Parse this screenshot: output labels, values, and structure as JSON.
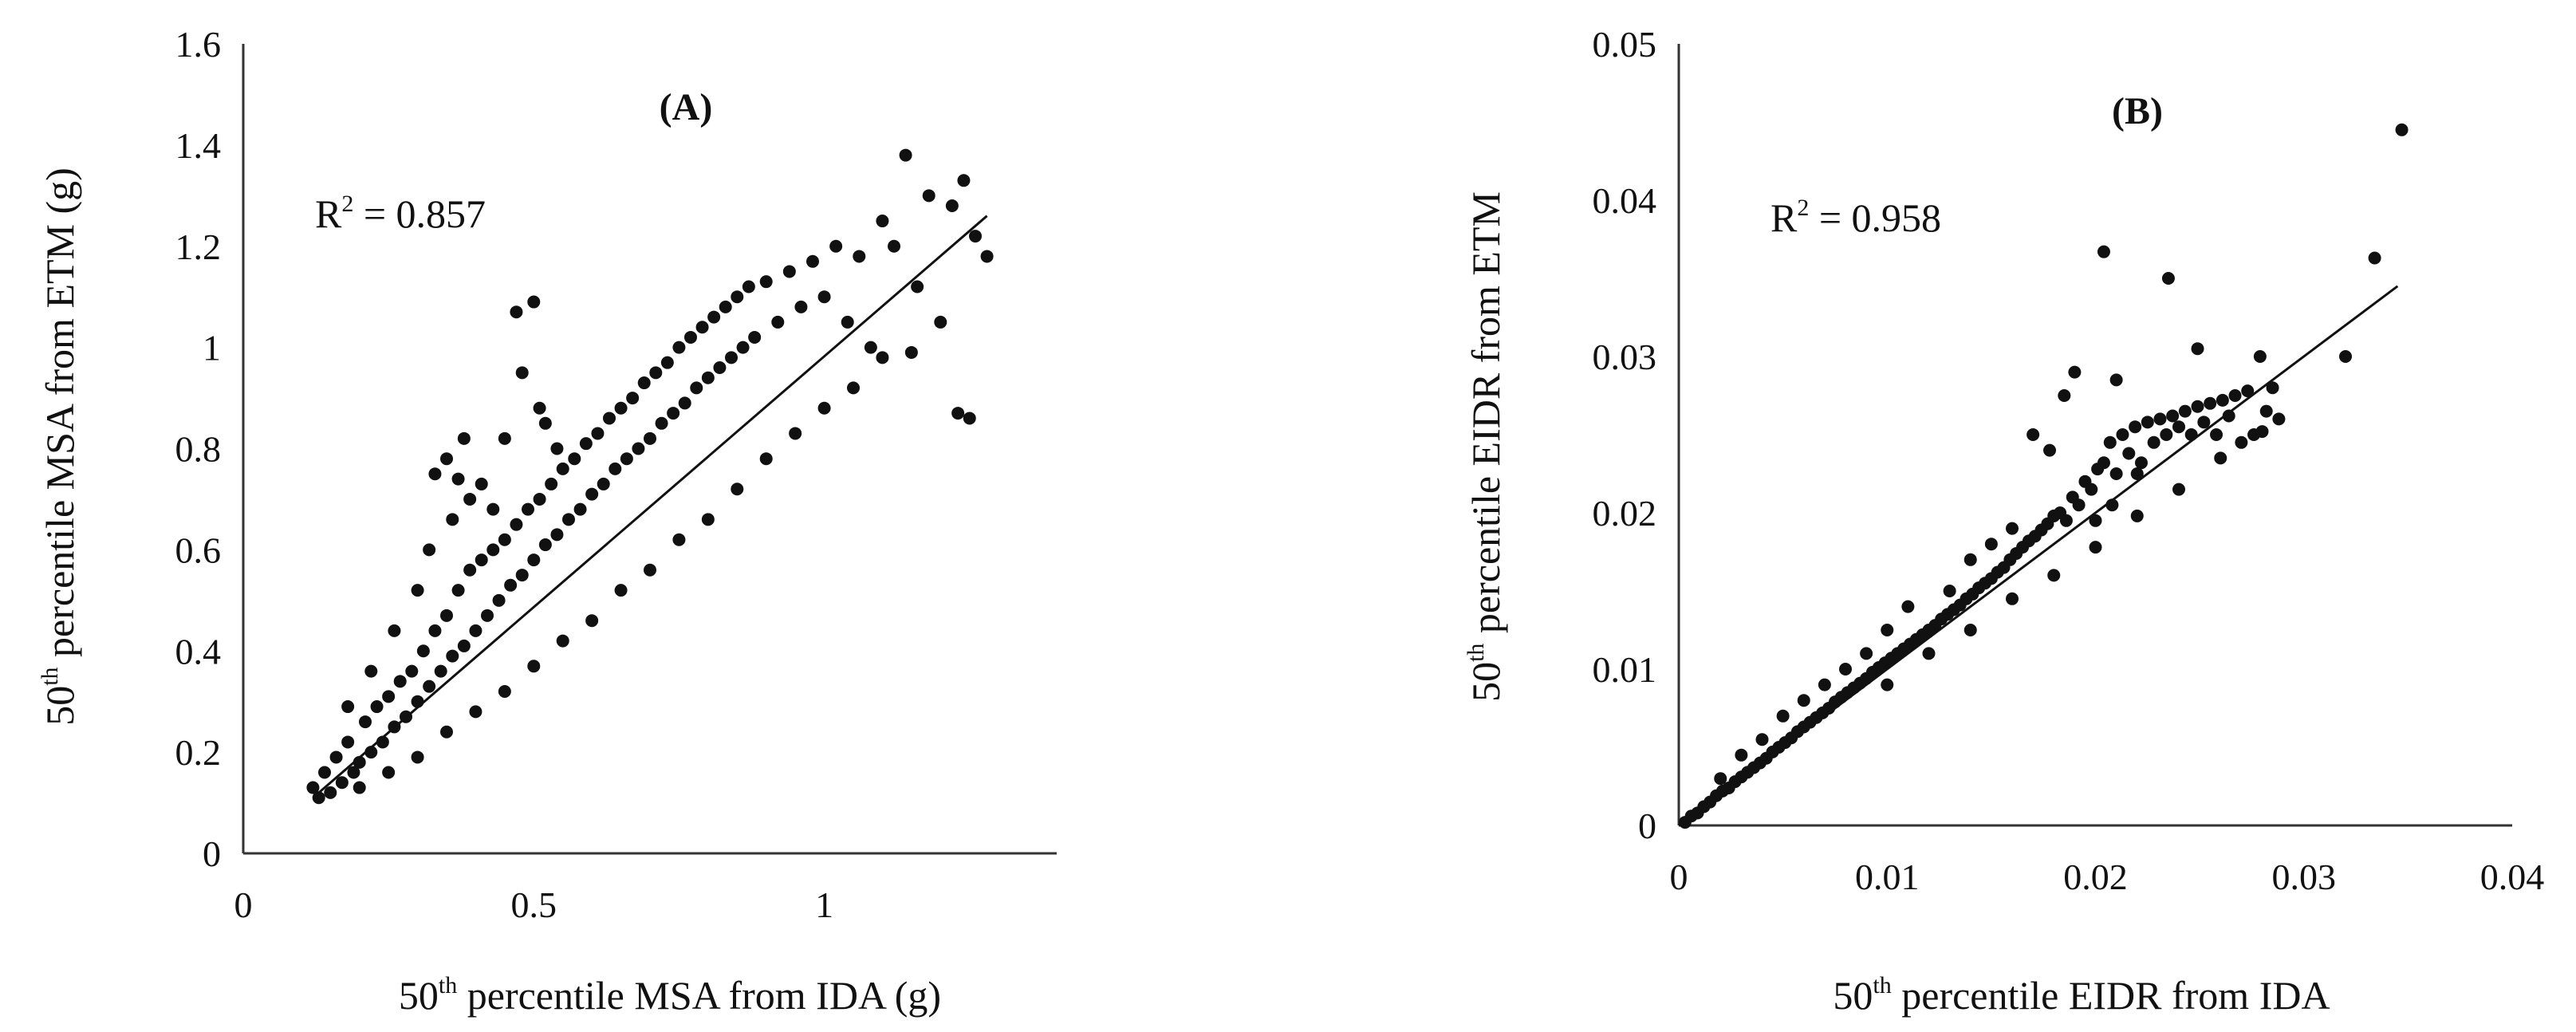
{
  "chart_data": [
    {
      "type": "scatter",
      "panel_label": "(A)",
      "annotation": {
        "prefix": "R",
        "exp": "2",
        "text": " = 0.857"
      },
      "xlabel": {
        "pre": "50",
        "sup": "th",
        "post": " percentile MSA from IDA  (g)"
      },
      "ylabel": {
        "pre": "50",
        "sup": "th",
        "post": " percentile MSA from ETM  (g)"
      },
      "xlim": [
        0,
        1.4
      ],
      "ylim": [
        0,
        1.6
      ],
      "xticks": [
        0,
        0.5,
        1
      ],
      "xtick_labels": [
        "0",
        "0.5",
        "1"
      ],
      "yticks": [
        0,
        0.2,
        0.4,
        0.6,
        0.8,
        1.0,
        1.2,
        1.4,
        1.6
      ],
      "ytick_labels": [
        "0",
        "0.2",
        "0.4",
        "0.6",
        "0.8",
        "1",
        "1.2",
        "1.4",
        "1.6"
      ],
      "trendline": {
        "x": [
          0.12,
          1.28
        ],
        "y": [
          0.11,
          1.26
        ]
      },
      "points": [
        [
          0.12,
          0.13
        ],
        [
          0.13,
          0.11
        ],
        [
          0.14,
          0.16
        ],
        [
          0.15,
          0.12
        ],
        [
          0.16,
          0.19
        ],
        [
          0.17,
          0.14
        ],
        [
          0.18,
          0.22
        ],
        [
          0.19,
          0.16
        ],
        [
          0.2,
          0.18
        ],
        [
          0.21,
          0.26
        ],
        [
          0.22,
          0.2
        ],
        [
          0.23,
          0.29
        ],
        [
          0.24,
          0.22
        ],
        [
          0.25,
          0.31
        ],
        [
          0.26,
          0.25
        ],
        [
          0.27,
          0.34
        ],
        [
          0.28,
          0.27
        ],
        [
          0.29,
          0.36
        ],
        [
          0.3,
          0.3
        ],
        [
          0.31,
          0.4
        ],
        [
          0.32,
          0.33
        ],
        [
          0.33,
          0.44
        ],
        [
          0.34,
          0.36
        ],
        [
          0.35,
          0.47
        ],
        [
          0.36,
          0.39
        ],
        [
          0.37,
          0.52
        ],
        [
          0.38,
          0.41
        ],
        [
          0.39,
          0.56
        ],
        [
          0.4,
          0.44
        ],
        [
          0.41,
          0.58
        ],
        [
          0.42,
          0.47
        ],
        [
          0.43,
          0.6
        ],
        [
          0.44,
          0.5
        ],
        [
          0.45,
          0.62
        ],
        [
          0.46,
          0.53
        ],
        [
          0.47,
          0.65
        ],
        [
          0.48,
          0.55
        ],
        [
          0.49,
          0.68
        ],
        [
          0.5,
          0.58
        ],
        [
          0.51,
          0.7
        ],
        [
          0.52,
          0.61
        ],
        [
          0.53,
          0.73
        ],
        [
          0.54,
          0.63
        ],
        [
          0.55,
          0.76
        ],
        [
          0.56,
          0.66
        ],
        [
          0.57,
          0.78
        ],
        [
          0.58,
          0.68
        ],
        [
          0.59,
          0.81
        ],
        [
          0.6,
          0.71
        ],
        [
          0.61,
          0.83
        ],
        [
          0.62,
          0.73
        ],
        [
          0.63,
          0.86
        ],
        [
          0.64,
          0.76
        ],
        [
          0.65,
          0.88
        ],
        [
          0.66,
          0.78
        ],
        [
          0.67,
          0.9
        ],
        [
          0.68,
          0.8
        ],
        [
          0.69,
          0.93
        ],
        [
          0.7,
          0.82
        ],
        [
          0.71,
          0.95
        ],
        [
          0.72,
          0.85
        ],
        [
          0.73,
          0.97
        ],
        [
          0.74,
          0.87
        ],
        [
          0.75,
          1.0
        ],
        [
          0.76,
          0.89
        ],
        [
          0.77,
          1.02
        ],
        [
          0.78,
          0.92
        ],
        [
          0.79,
          1.04
        ],
        [
          0.8,
          0.94
        ],
        [
          0.81,
          1.06
        ],
        [
          0.82,
          0.96
        ],
        [
          0.83,
          1.08
        ],
        [
          0.84,
          0.98
        ],
        [
          0.85,
          1.1
        ],
        [
          0.86,
          1.0
        ],
        [
          0.87,
          1.12
        ],
        [
          0.88,
          1.02
        ],
        [
          0.9,
          1.13
        ],
        [
          0.92,
          1.05
        ],
        [
          0.94,
          1.15
        ],
        [
          0.96,
          1.08
        ],
        [
          0.98,
          1.17
        ],
        [
          1.0,
          1.1
        ],
        [
          1.02,
          1.2
        ],
        [
          1.04,
          1.05
        ],
        [
          1.06,
          1.18
        ],
        [
          1.08,
          1.0
        ],
        [
          1.1,
          1.25
        ],
        [
          1.12,
          1.2
        ],
        [
          1.14,
          1.38
        ],
        [
          1.16,
          1.12
        ],
        [
          1.18,
          1.3
        ],
        [
          1.2,
          1.05
        ],
        [
          1.22,
          1.28
        ],
        [
          1.24,
          1.33
        ],
        [
          1.25,
          0.86
        ],
        [
          1.26,
          1.22
        ],
        [
          1.28,
          1.18
        ],
        [
          1.23,
          0.87
        ],
        [
          1.15,
          0.99
        ],
        [
          0.18,
          0.29
        ],
        [
          0.22,
          0.36
        ],
        [
          0.26,
          0.44
        ],
        [
          0.3,
          0.52
        ],
        [
          0.32,
          0.6
        ],
        [
          0.33,
          0.75
        ],
        [
          0.35,
          0.78
        ],
        [
          0.36,
          0.66
        ],
        [
          0.37,
          0.74
        ],
        [
          0.38,
          0.82
        ],
        [
          0.39,
          0.7
        ],
        [
          0.41,
          0.73
        ],
        [
          0.43,
          0.68
        ],
        [
          0.45,
          0.82
        ],
        [
          0.47,
          1.07
        ],
        [
          0.48,
          0.95
        ],
        [
          0.5,
          1.09
        ],
        [
          0.51,
          0.88
        ],
        [
          0.52,
          0.85
        ],
        [
          0.54,
          0.8
        ],
        [
          0.2,
          0.13
        ],
        [
          0.25,
          0.16
        ],
        [
          0.3,
          0.19
        ],
        [
          0.35,
          0.24
        ],
        [
          0.4,
          0.28
        ],
        [
          0.45,
          0.32
        ],
        [
          0.5,
          0.37
        ],
        [
          0.55,
          0.42
        ],
        [
          0.6,
          0.46
        ],
        [
          0.65,
          0.52
        ],
        [
          0.7,
          0.56
        ],
        [
          0.75,
          0.62
        ],
        [
          0.8,
          0.66
        ],
        [
          0.85,
          0.72
        ],
        [
          0.9,
          0.78
        ],
        [
          0.95,
          0.83
        ],
        [
          1.0,
          0.88
        ],
        [
          1.05,
          0.92
        ],
        [
          1.1,
          0.98
        ]
      ]
    },
    {
      "type": "scatter",
      "panel_label": "(B)",
      "annotation": {
        "prefix": "R",
        "exp": "2",
        "text": " = 0.958"
      },
      "xlabel": {
        "pre": "50",
        "sup": "th",
        "post": " percentile EIDR from IDA"
      },
      "ylabel": {
        "pre": "50",
        "sup": "th",
        "post": " percentile EIDR from ETM"
      },
      "xlim": [
        0,
        0.04
      ],
      "ylim": [
        0,
        0.05
      ],
      "xticks": [
        0,
        0.01,
        0.02,
        0.03,
        0.04
      ],
      "xtick_labels": [
        "0",
        "0.01",
        "0.02",
        "0.03",
        "0.04"
      ],
      "yticks": [
        0,
        0.01,
        0.02,
        0.03,
        0.04,
        0.05
      ],
      "ytick_labels": [
        "0",
        "0.01",
        "0.02",
        "0.03",
        "0.04",
        "0.05"
      ],
      "trendline": {
        "x": [
          0,
          0.0345
        ],
        "y": [
          0,
          0.0345
        ]
      },
      "points": [
        [
          0.0003,
          0.0002
        ],
        [
          0.0006,
          0.0006
        ],
        [
          0.0009,
          0.0008
        ],
        [
          0.0012,
          0.0012
        ],
        [
          0.0015,
          0.0015
        ],
        [
          0.0018,
          0.0019
        ],
        [
          0.0021,
          0.0022
        ],
        [
          0.0024,
          0.0024
        ],
        [
          0.0027,
          0.0028
        ],
        [
          0.003,
          0.0031
        ],
        [
          0.0033,
          0.0034
        ],
        [
          0.0036,
          0.0037
        ],
        [
          0.0039,
          0.004
        ],
        [
          0.0042,
          0.0043
        ],
        [
          0.0045,
          0.0047
        ],
        [
          0.0048,
          0.005
        ],
        [
          0.0051,
          0.0053
        ],
        [
          0.0054,
          0.0056
        ],
        [
          0.0057,
          0.006
        ],
        [
          0.006,
          0.0063
        ],
        [
          0.0063,
          0.0066
        ],
        [
          0.0066,
          0.0069
        ],
        [
          0.0069,
          0.0072
        ],
        [
          0.0072,
          0.0075
        ],
        [
          0.0075,
          0.0079
        ],
        [
          0.0078,
          0.0082
        ],
        [
          0.0081,
          0.0085
        ],
        [
          0.0084,
          0.0088
        ],
        [
          0.0087,
          0.0091
        ],
        [
          0.009,
          0.0094
        ],
        [
          0.0093,
          0.0098
        ],
        [
          0.0096,
          0.0101
        ],
        [
          0.0099,
          0.0104
        ],
        [
          0.0102,
          0.0107
        ],
        [
          0.0105,
          0.011
        ],
        [
          0.0108,
          0.0113
        ],
        [
          0.0111,
          0.0116
        ],
        [
          0.0114,
          0.0119
        ],
        [
          0.0117,
          0.0122
        ],
        [
          0.012,
          0.0125
        ],
        [
          0.0123,
          0.0128
        ],
        [
          0.0126,
          0.0132
        ],
        [
          0.0129,
          0.0135
        ],
        [
          0.0132,
          0.0138
        ],
        [
          0.0135,
          0.0141
        ],
        [
          0.0138,
          0.0145
        ],
        [
          0.0141,
          0.0148
        ],
        [
          0.0144,
          0.0152
        ],
        [
          0.0147,
          0.0155
        ],
        [
          0.015,
          0.0158
        ],
        [
          0.0153,
          0.0162
        ],
        [
          0.0156,
          0.0165
        ],
        [
          0.0159,
          0.017
        ],
        [
          0.0162,
          0.0174
        ],
        [
          0.0165,
          0.0178
        ],
        [
          0.0168,
          0.0182
        ],
        [
          0.0171,
          0.0185
        ],
        [
          0.0174,
          0.0189
        ],
        [
          0.0177,
          0.0193
        ],
        [
          0.018,
          0.0198
        ],
        [
          0.0183,
          0.02
        ],
        [
          0.0186,
          0.0195
        ],
        [
          0.0189,
          0.021
        ],
        [
          0.0192,
          0.0205
        ],
        [
          0.0195,
          0.022
        ],
        [
          0.0198,
          0.0215
        ],
        [
          0.0201,
          0.0228
        ],
        [
          0.0204,
          0.0232
        ],
        [
          0.0207,
          0.0245
        ],
        [
          0.021,
          0.0225
        ],
        [
          0.0213,
          0.025
        ],
        [
          0.0216,
          0.0238
        ],
        [
          0.0219,
          0.0255
        ],
        [
          0.0222,
          0.0232
        ],
        [
          0.0225,
          0.0258
        ],
        [
          0.0228,
          0.0245
        ],
        [
          0.0231,
          0.026
        ],
        [
          0.0234,
          0.025
        ],
        [
          0.0237,
          0.0262
        ],
        [
          0.024,
          0.0255
        ],
        [
          0.0243,
          0.0265
        ],
        [
          0.0246,
          0.025
        ],
        [
          0.0249,
          0.0268
        ],
        [
          0.0252,
          0.0258
        ],
        [
          0.0255,
          0.027
        ],
        [
          0.0258,
          0.025
        ],
        [
          0.0261,
          0.0272
        ],
        [
          0.0264,
          0.0262
        ],
        [
          0.0267,
          0.0275
        ],
        [
          0.027,
          0.0245
        ],
        [
          0.0273,
          0.0278
        ],
        [
          0.0276,
          0.025
        ],
        [
          0.0279,
          0.03
        ],
        [
          0.0282,
          0.0265
        ],
        [
          0.0285,
          0.028
        ],
        [
          0.0288,
          0.026
        ],
        [
          0.0204,
          0.0367
        ],
        [
          0.0235,
          0.035
        ],
        [
          0.0249,
          0.0305
        ],
        [
          0.0334,
          0.0363
        ],
        [
          0.0347,
          0.0445
        ],
        [
          0.032,
          0.03
        ],
        [
          0.0185,
          0.0275
        ],
        [
          0.019,
          0.029
        ],
        [
          0.017,
          0.025
        ],
        [
          0.0178,
          0.024
        ],
        [
          0.021,
          0.0285
        ],
        [
          0.02,
          0.0195
        ],
        [
          0.022,
          0.0225
        ],
        [
          0.0208,
          0.0205
        ],
        [
          0.016,
          0.019
        ],
        [
          0.015,
          0.018
        ],
        [
          0.014,
          0.017
        ],
        [
          0.013,
          0.015
        ],
        [
          0.01,
          0.0125
        ],
        [
          0.011,
          0.014
        ],
        [
          0.009,
          0.011
        ],
        [
          0.008,
          0.01
        ],
        [
          0.007,
          0.009
        ],
        [
          0.006,
          0.008
        ],
        [
          0.005,
          0.007
        ],
        [
          0.004,
          0.0055
        ],
        [
          0.003,
          0.0045
        ],
        [
          0.002,
          0.003
        ],
        [
          0.01,
          0.009
        ],
        [
          0.012,
          0.011
        ],
        [
          0.014,
          0.0125
        ],
        [
          0.016,
          0.0145
        ],
        [
          0.018,
          0.016
        ],
        [
          0.02,
          0.0178
        ],
        [
          0.022,
          0.0198
        ],
        [
          0.024,
          0.0215
        ],
        [
          0.026,
          0.0235
        ],
        [
          0.028,
          0.0252
        ]
      ]
    }
  ]
}
